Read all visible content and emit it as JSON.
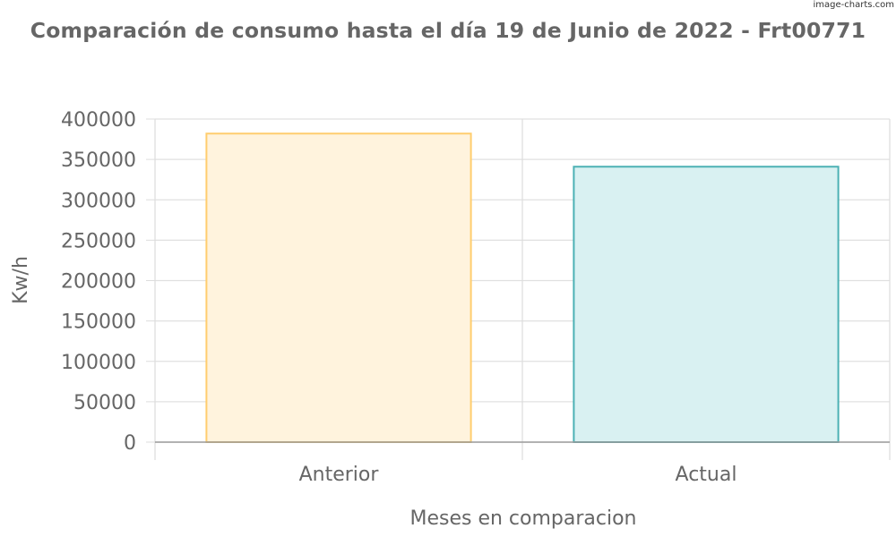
{
  "watermark": "image-charts.com",
  "chart_data": {
    "type": "bar",
    "title": "Comparación de consumo hasta el día 19 de Junio de 2022 - Frt00771",
    "xlabel": "Meses en comparacion",
    "ylabel": "Kw/h",
    "categories": [
      "Anterior",
      "Actual"
    ],
    "values": [
      382000,
      341000
    ],
    "bar_fill_colors": [
      "#fff3dd",
      "#d9f1f2"
    ],
    "bar_stroke_colors": [
      "#ffcd6e",
      "#4cb1b4"
    ],
    "ylim": [
      0,
      400000
    ],
    "yticks": [
      "0",
      "50000",
      "100000",
      "150000",
      "200000",
      "250000",
      "300000",
      "350000",
      "400000"
    ],
    "grid": true,
    "legend": "none"
  }
}
